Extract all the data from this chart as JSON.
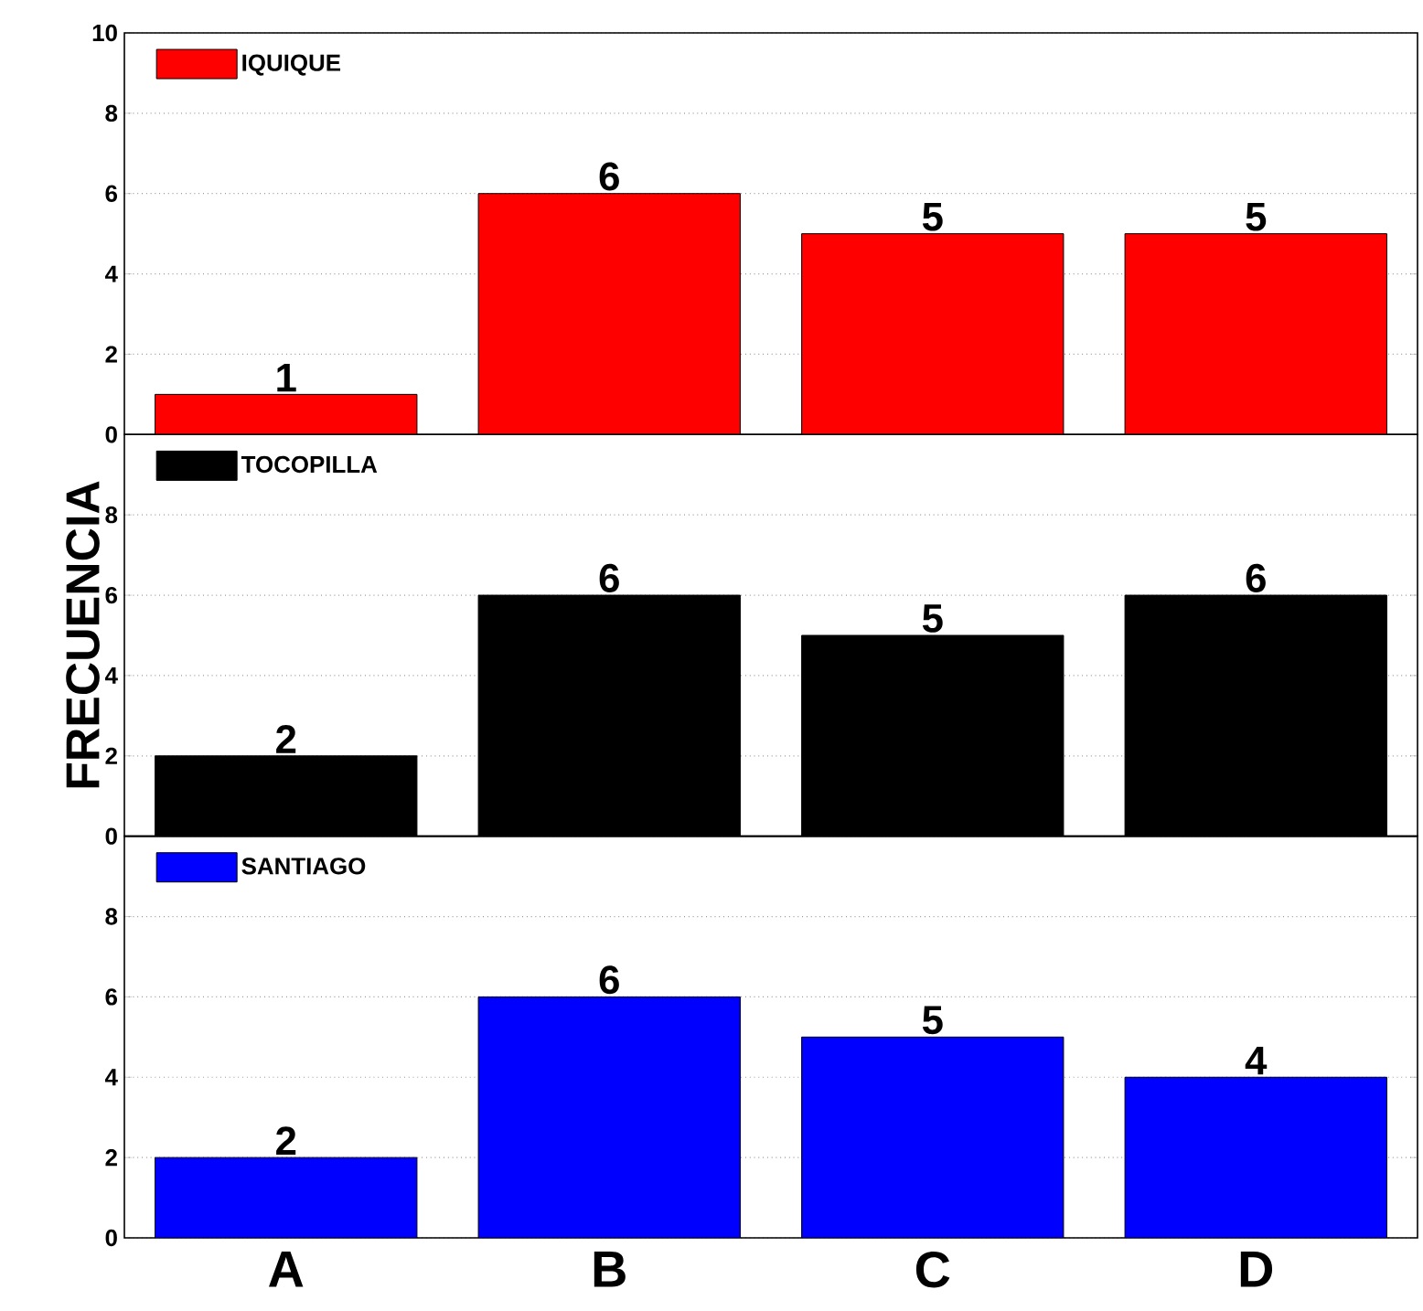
{
  "chart_data": [
    {
      "type": "bar",
      "categories": [
        null,
        null,
        null,
        null
      ],
      "series": [
        {
          "name": "IQUIQUE",
          "color": "#ff0000",
          "values": [
            1,
            6,
            5,
            5
          ]
        }
      ],
      "ylim": [
        0,
        10
      ],
      "yticks": [
        0,
        2,
        4,
        6,
        8,
        10
      ],
      "grid": "y",
      "legend": "top left",
      "data_labels": true,
      "tick_labels": "y"
    },
    {
      "type": "bar",
      "categories": [
        null,
        null,
        null,
        null
      ],
      "ylabel": "FRECUENCIA",
      "series": [
        {
          "name": "TOCOPILLA",
          "color": "#000000",
          "values": [
            2,
            6,
            5,
            6
          ]
        }
      ],
      "ylim": [
        0,
        10
      ],
      "yticks": [
        0,
        2,
        4,
        6,
        8
      ],
      "grid": "y",
      "legend": "top left",
      "data_labels": true,
      "tick_labels": "y"
    },
    {
      "type": "bar",
      "categories": [
        "A",
        "B",
        "C",
        "D"
      ],
      "series": [
        {
          "name": "SANTIAGO",
          "color": "#0000ff",
          "values": [
            2,
            6,
            5,
            4
          ]
        }
      ],
      "ylim": [
        0,
        10
      ],
      "yticks": [
        0,
        2,
        4,
        6,
        8
      ],
      "grid": "y",
      "legend": "top left",
      "data_labels": true
    }
  ]
}
